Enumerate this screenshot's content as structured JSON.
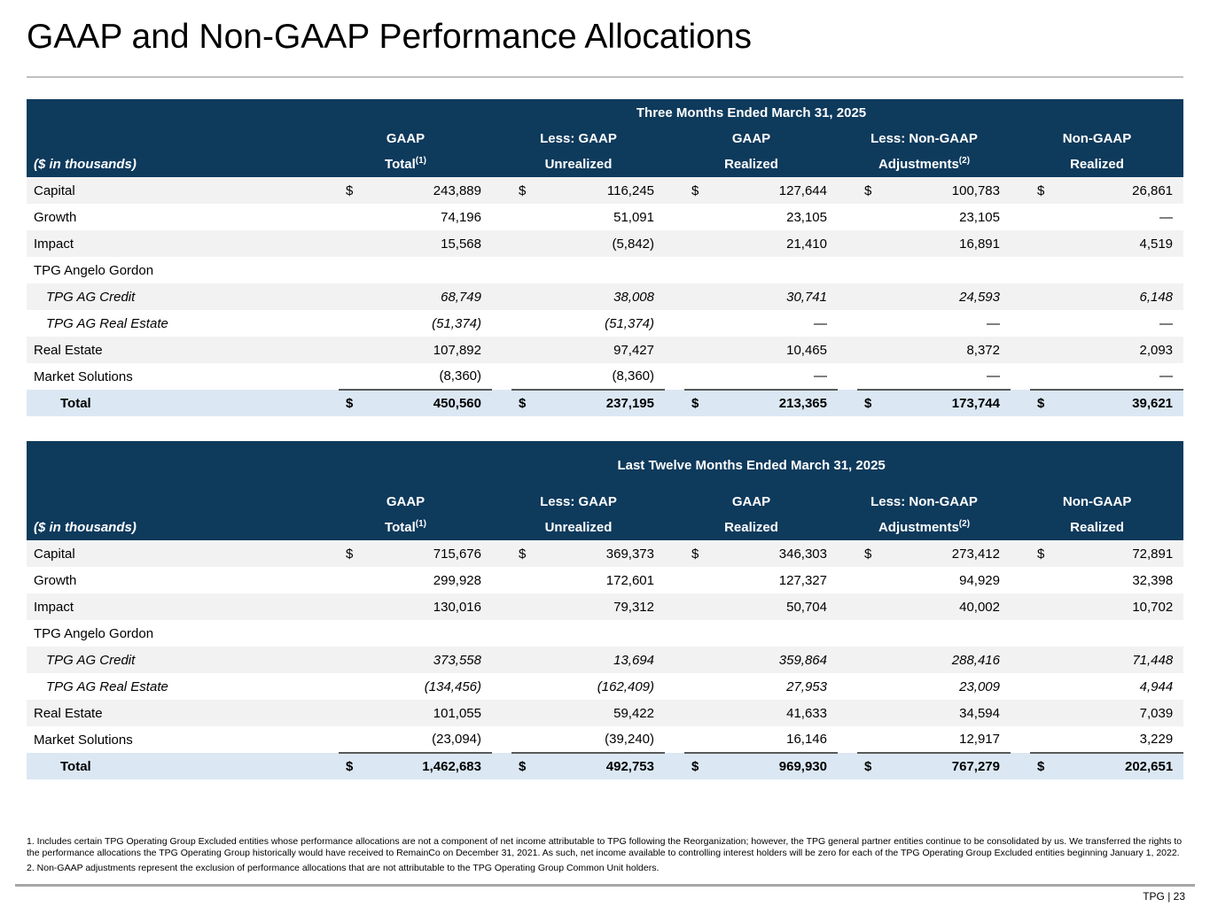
{
  "title": "GAAP and Non-GAAP Performance Allocations",
  "colors": {
    "header_bg": "#0E3A5C",
    "header_text": "#FFFFFF",
    "total_row_bg": "#DBE8F4",
    "alt_row_bg": "#F2F2F2",
    "body_text": "#000000",
    "total_rule": "#595959",
    "divider": "#C0C0C0",
    "footer_divider": "#A6A6A6"
  },
  "tables": [
    {
      "period_title": "Three Months Ended March 31, 2025",
      "units_label": "($ in thousands)",
      "columns": [
        {
          "line1": "GAAP",
          "line2": "Total",
          "sup": "(1)"
        },
        {
          "line1": "Less: GAAP",
          "line2": "Unrealized",
          "sup": ""
        },
        {
          "line1": "GAAP",
          "line2": "Realized",
          "sup": ""
        },
        {
          "line1": "Less: Non-GAAP",
          "line2": "Adjustments",
          "sup": "(2)"
        },
        {
          "line1": "Non-GAAP",
          "line2": "Realized",
          "sup": ""
        }
      ],
      "rows": [
        {
          "label": "Capital",
          "dollar": true,
          "values": [
            "243,889",
            "116,245",
            "127,644",
            "100,783",
            "26,861"
          ]
        },
        {
          "label": "Growth",
          "values": [
            "74,196",
            "51,091",
            "23,105",
            "23,105",
            "—"
          ]
        },
        {
          "label": "Impact",
          "values": [
            "15,568",
            "(5,842)",
            "21,410",
            "16,891",
            "4,519"
          ]
        },
        {
          "label": "TPG Angelo Gordon",
          "values": [
            "",
            "",
            "",
            "",
            ""
          ]
        },
        {
          "label": "TPG AG Credit",
          "italic": true,
          "indent": true,
          "values": [
            "68,749",
            "38,008",
            "30,741",
            "24,593",
            "6,148"
          ]
        },
        {
          "label": "TPG AG Real Estate",
          "italic": true,
          "indent": true,
          "values": [
            "(51,374)",
            "(51,374)",
            "—",
            "—",
            "—"
          ]
        },
        {
          "label": "Real Estate",
          "values": [
            "107,892",
            "97,427",
            "10,465",
            "8,372",
            "2,093"
          ]
        },
        {
          "label": "Market Solutions",
          "values": [
            "(8,360)",
            "(8,360)",
            "—",
            "—",
            "—"
          ]
        }
      ],
      "total": {
        "label": "Total",
        "values": [
          "450,560",
          "237,195",
          "213,365",
          "173,744",
          "39,621"
        ]
      }
    },
    {
      "period_title": "Last Twelve Months Ended March 31, 2025",
      "units_label": "($ in thousands)",
      "columns": [
        {
          "line1": "GAAP",
          "line2": "Total",
          "sup": "(1)"
        },
        {
          "line1": "Less: GAAP",
          "line2": "Unrealized",
          "sup": ""
        },
        {
          "line1": "GAAP",
          "line2": "Realized",
          "sup": ""
        },
        {
          "line1": "Less: Non-GAAP",
          "line2": "Adjustments",
          "sup": "(2)"
        },
        {
          "line1": "Non-GAAP",
          "line2": "Realized",
          "sup": ""
        }
      ],
      "rows": [
        {
          "label": "Capital",
          "dollar": true,
          "values": [
            "715,676",
            "369,373",
            "346,303",
            "273,412",
            "72,891"
          ]
        },
        {
          "label": "Growth",
          "values": [
            "299,928",
            "172,601",
            "127,327",
            "94,929",
            "32,398"
          ]
        },
        {
          "label": "Impact",
          "values": [
            "130,016",
            "79,312",
            "50,704",
            "40,002",
            "10,702"
          ]
        },
        {
          "label": "TPG Angelo Gordon",
          "values": [
            "",
            "",
            "",
            "",
            ""
          ]
        },
        {
          "label": "TPG AG Credit",
          "italic": true,
          "indent": true,
          "values": [
            "373,558",
            "13,694",
            "359,864",
            "288,416",
            "71,448"
          ]
        },
        {
          "label": "TPG AG Real Estate",
          "italic": true,
          "indent": true,
          "values": [
            "(134,456)",
            "(162,409)",
            "27,953",
            "23,009",
            "4,944"
          ]
        },
        {
          "label": "Real Estate",
          "values": [
            "101,055",
            "59,422",
            "41,633",
            "34,594",
            "7,039"
          ]
        },
        {
          "label": "Market Solutions",
          "values": [
            "(23,094)",
            "(39,240)",
            "16,146",
            "12,917",
            "3,229"
          ]
        }
      ],
      "total": {
        "label": "Total",
        "values": [
          "1,462,683",
          "492,753",
          "969,930",
          "767,279",
          "202,651"
        ]
      }
    }
  ],
  "footnotes": [
    "1. Includes certain TPG Operating Group Excluded entities whose performance allocations are not a component of net income attributable to TPG following the Reorganization; however, the TPG general partner entities continue to be consolidated by us. We transferred the rights to the performance allocations the TPG Operating Group historically would have received to RemainCo on December 31, 2021. As such, net income available to controlling interest holders will be zero for each of the TPG Operating Group Excluded entities beginning January 1, 2022.",
    "2. Non-GAAP adjustments represent the exclusion of performance allocations that are not attributable to the TPG Operating Group Common Unit holders."
  ],
  "footer": {
    "page_label": "TPG | 23"
  }
}
